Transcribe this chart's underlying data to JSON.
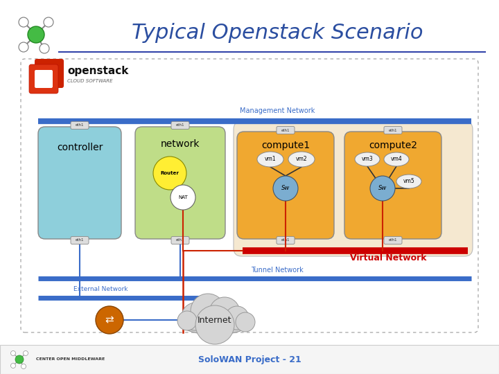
{
  "title": "Typical Openstack Scenario",
  "title_color": "#2B4EA0",
  "title_fontsize": 22,
  "bg_color": "#FFFFFF",
  "footer_text": "SoloWAN Project - 21",
  "management_network_label": "Management Network",
  "tunnel_network_label": "Tunnel Network",
  "external_network_label": "External Network",
  "virtual_network_label": "Virtual Network",
  "internet_label": "Internet",
  "mgmt_bar_color": "#3A6CC8",
  "virtual_bar_color": "#CC0000",
  "tunnel_bar_color": "#3A6CC8",
  "external_bar_color": "#3A6CC8",
  "controller_color": "#8ECFDB",
  "network_color": "#BFDD88",
  "compute_color": "#F0A830",
  "vnet_bg_color": "#F5E8D0"
}
